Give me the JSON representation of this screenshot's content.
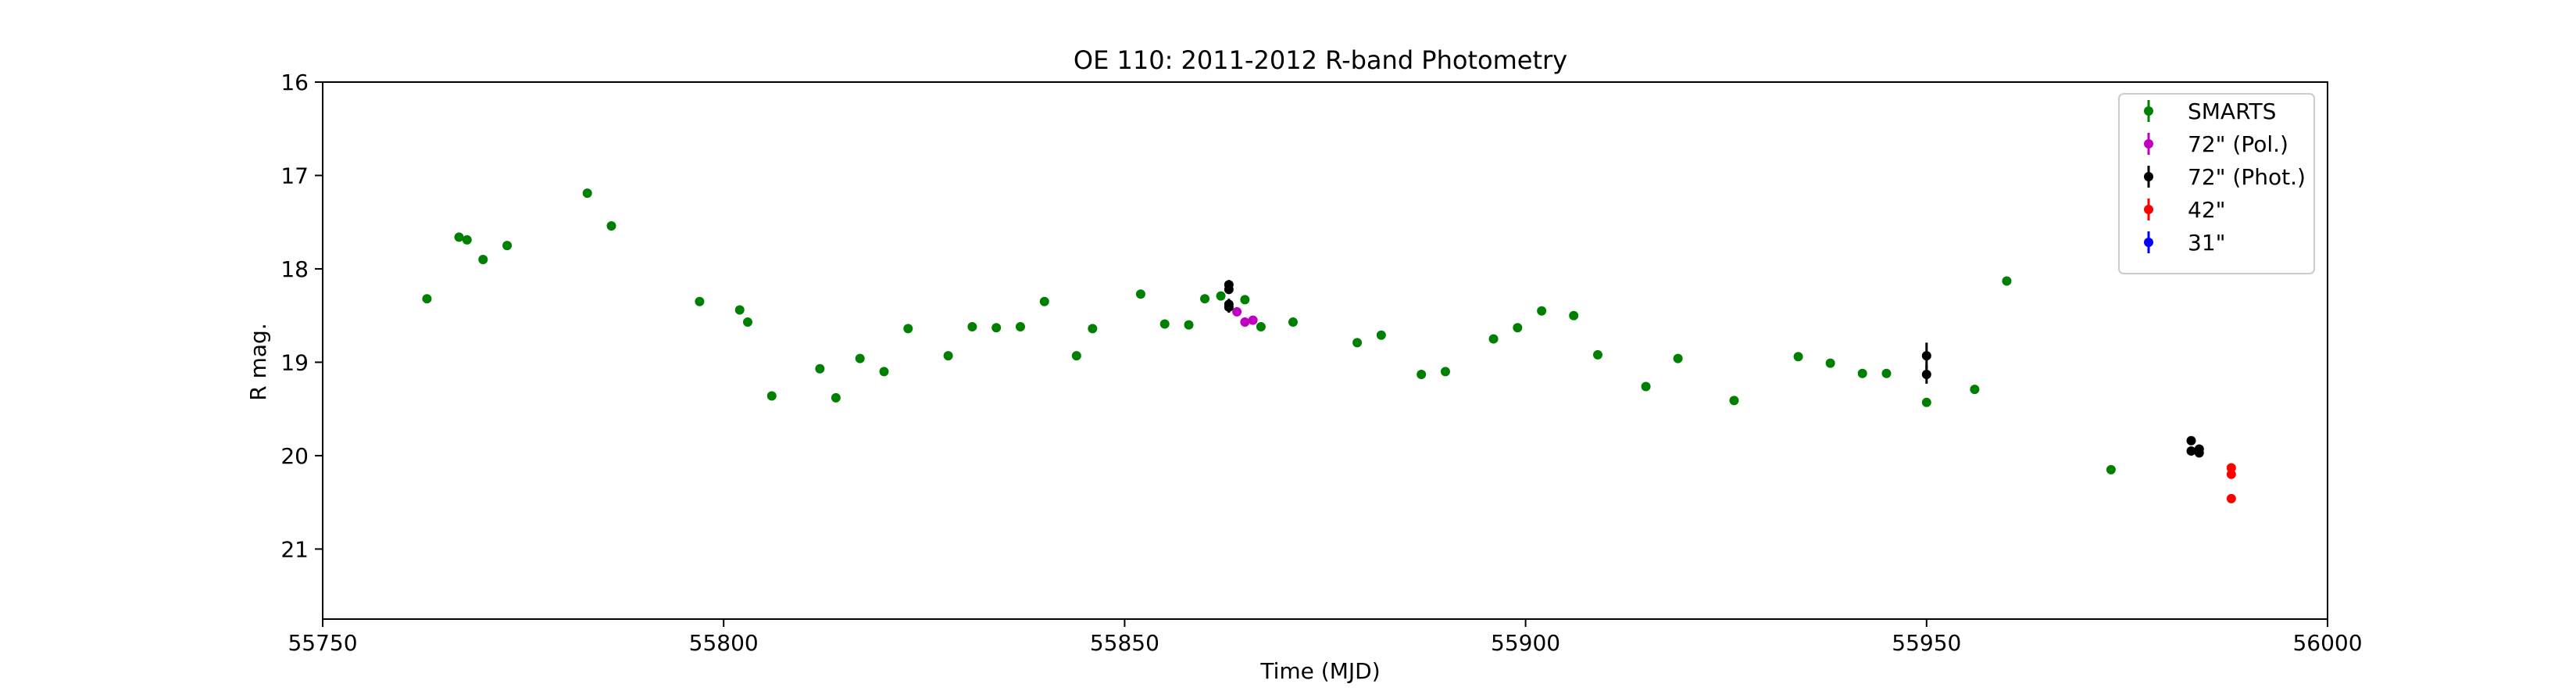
{
  "chart_data": {
    "type": "scatter",
    "title": "OE 110: 2011-2012 R-band Photometry",
    "xlabel": "Time (MJD)",
    "ylabel": "R mag.",
    "xlim": [
      55750,
      56000
    ],
    "ylim": [
      21.75,
      16
    ],
    "y_inverted": true,
    "grid": false,
    "legend_position": "top-right",
    "x_ticks": [
      55750,
      55800,
      55850,
      55900,
      55950,
      56000
    ],
    "y_ticks": [
      16,
      17,
      18,
      19,
      20,
      21
    ],
    "series": [
      {
        "name": "SMARTS",
        "color": "#008000",
        "points": [
          [
            55763,
            18.32
          ],
          [
            55767,
            17.66
          ],
          [
            55768,
            17.69
          ],
          [
            55770,
            17.9
          ],
          [
            55773,
            17.75
          ],
          [
            55783,
            17.19
          ],
          [
            55786,
            17.54
          ],
          [
            55797,
            18.35
          ],
          [
            55802,
            18.44
          ],
          [
            55803,
            18.57
          ],
          [
            55806,
            19.36
          ],
          [
            55812,
            19.07
          ],
          [
            55814,
            19.38
          ],
          [
            55817,
            18.96
          ],
          [
            55820,
            19.1
          ],
          [
            55823,
            18.64
          ],
          [
            55828,
            18.93
          ],
          [
            55831,
            18.62
          ],
          [
            55834,
            18.63
          ],
          [
            55837,
            18.62
          ],
          [
            55840,
            18.35
          ],
          [
            55844,
            18.93
          ],
          [
            55846,
            18.64
          ],
          [
            55852,
            18.27
          ],
          [
            55855,
            18.59
          ],
          [
            55858,
            18.6
          ],
          [
            55860,
            18.32
          ],
          [
            55862,
            18.29
          ],
          [
            55865,
            18.33
          ],
          [
            55867,
            18.62
          ],
          [
            55871,
            18.57
          ],
          [
            55879,
            18.79
          ],
          [
            55882,
            18.71
          ],
          [
            55887,
            19.13
          ],
          [
            55890,
            19.1
          ],
          [
            55896,
            18.75
          ],
          [
            55899,
            18.63
          ],
          [
            55902,
            18.45
          ],
          [
            55906,
            18.5
          ],
          [
            55909,
            18.92
          ],
          [
            55915,
            19.26
          ],
          [
            55919,
            18.96
          ],
          [
            55926,
            19.41
          ],
          [
            55934,
            18.94
          ],
          [
            55938,
            19.01
          ],
          [
            55942,
            19.12
          ],
          [
            55945,
            19.12
          ],
          [
            55950,
            19.43
          ],
          [
            55956,
            19.29
          ],
          [
            55960,
            18.13
          ],
          [
            55973,
            20.15
          ]
        ],
        "errors": []
      },
      {
        "name": "72\" (Pol.)",
        "color": "#bf00bf",
        "points": [
          [
            55864,
            18.46
          ],
          [
            55865,
            18.57
          ],
          [
            55866,
            18.55
          ]
        ],
        "errors": [
          0.03,
          0.03,
          0.03
        ]
      },
      {
        "name": "72\" (Phot.)",
        "color": "#000000",
        "points": [
          [
            55863,
            18.17
          ],
          [
            55863,
            18.22
          ],
          [
            55863,
            18.38
          ],
          [
            55863,
            18.41
          ],
          [
            55950,
            18.93
          ],
          [
            55950,
            19.13
          ],
          [
            55983,
            19.84
          ],
          [
            55983,
            19.95
          ],
          [
            55984,
            19.93
          ],
          [
            55984,
            19.97
          ]
        ],
        "errors": [
          0.05,
          0.05,
          0.06,
          0.06,
          0.14,
          0.1,
          0.04,
          0.03,
          0.03,
          0.03
        ]
      },
      {
        "name": "42\"",
        "color": "#ff0000",
        "points": [
          [
            55988,
            20.13
          ],
          [
            55988,
            20.2
          ],
          [
            55988,
            20.46
          ]
        ],
        "errors": []
      },
      {
        "name": "31\"",
        "color": "#0000ff",
        "points": [],
        "errors": []
      }
    ]
  }
}
